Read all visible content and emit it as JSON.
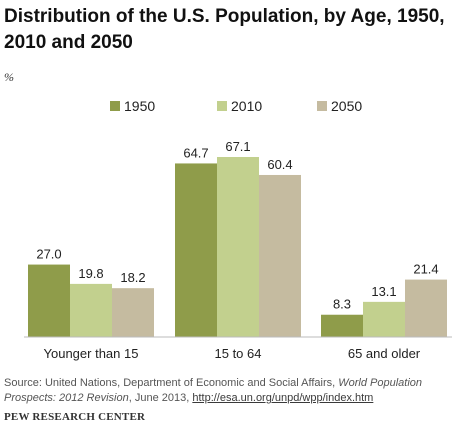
{
  "chart_data": {
    "type": "bar",
    "title": "Distribution of the U.S. Population, by Age, 1950, 2010 and 2050",
    "unit_label": "%",
    "categories": [
      "Younger than 15",
      "15 to 64",
      "65 and older"
    ],
    "series": [
      {
        "name": "1950",
        "color": "#8f9c4a",
        "values": [
          27.0,
          64.7,
          8.3
        ]
      },
      {
        "name": "2010",
        "color": "#c2d08e",
        "values": [
          19.8,
          67.1,
          13.1
        ]
      },
      {
        "name": "2050",
        "color": "#c5bba0",
        "values": [
          18.2,
          60.4,
          21.4
        ]
      }
    ],
    "ylim": [
      0,
      67.1
    ],
    "grid": false,
    "legend_position": "top-center"
  },
  "footer": {
    "source_text": "Source: United Nations, Department of Economic and Social Affairs, ",
    "source_italic": "World Population Prospects: 2012 Revision",
    "source_date": ", June 2013, ",
    "source_link": "http://esa.un.org/unpd/wpp/index.htm",
    "org": "PEW RESEARCH CENTER"
  }
}
